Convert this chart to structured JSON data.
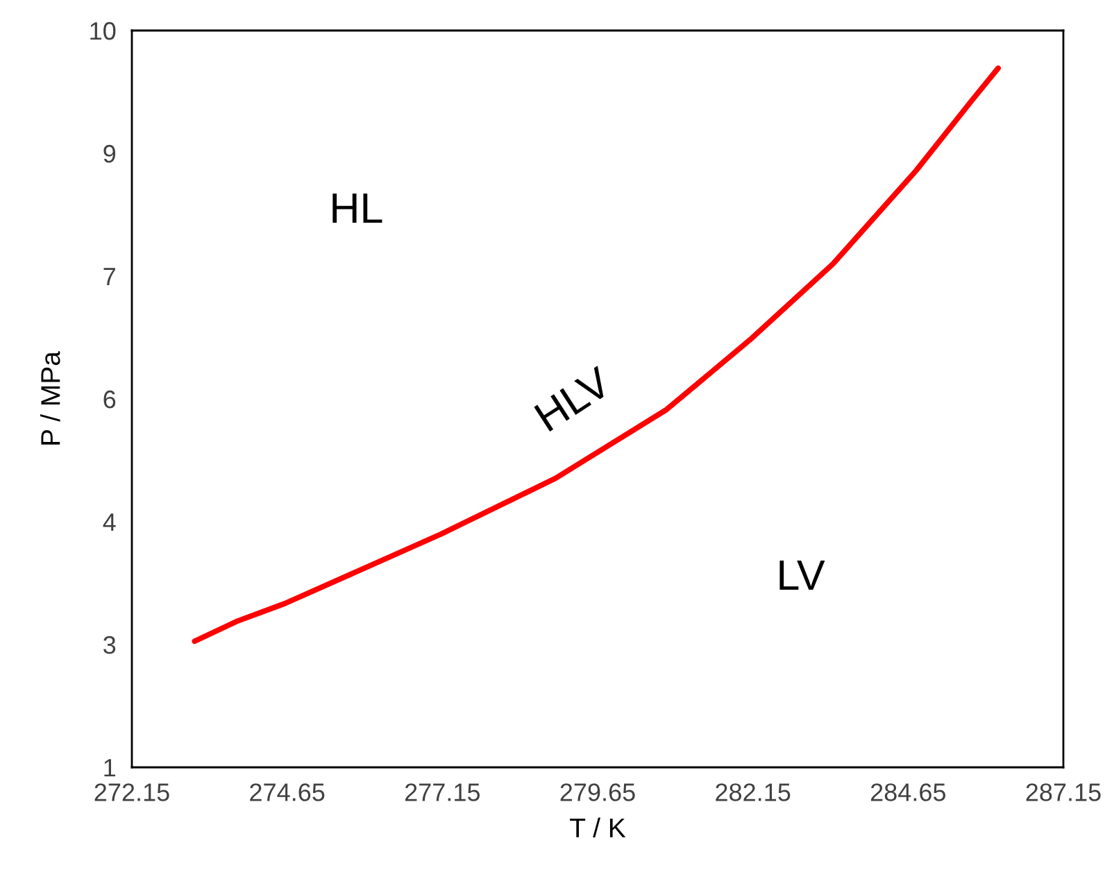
{
  "chart_data": {
    "type": "line",
    "xlabel": "T / K",
    "ylabel": "P / MPa",
    "x": [
      273.16,
      273.83,
      274.61,
      275.62,
      277.13,
      278.97,
      280.76,
      282.1,
      283.44,
      284.78,
      285.68,
      286.1
    ],
    "series": [
      {
        "color": "#ff0000",
        "values": [
          2.54,
          2.78,
          3.0,
          3.34,
          3.85,
          4.53,
          5.37,
          6.22,
          7.15,
          8.29,
          9.15,
          9.54
        ]
      }
    ],
    "xlim": [
      272.15,
      287.15
    ],
    "xticks": [
      272.15,
      274.65,
      277.15,
      279.65,
      282.15,
      284.65,
      287.15
    ],
    "ylim": [
      1,
      10
    ],
    "yticks": [
      1,
      {
        "value": 2.5,
        "label": "3"
      },
      4,
      {
        "value": 5.5,
        "label": "6"
      },
      7,
      {
        "value": 8.5,
        "label": "9"
      },
      10
    ],
    "annotations": [
      "HL",
      "HLV",
      "LV"
    ],
    "grid": false,
    "legend": false,
    "marker": "none",
    "line_style": "solid"
  }
}
